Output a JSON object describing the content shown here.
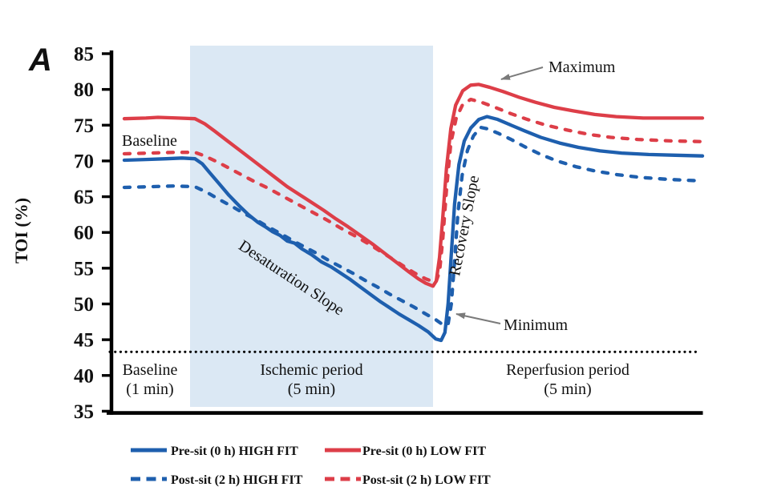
{
  "panel_label": "A",
  "y_axis": {
    "title": "TOI (%)",
    "ticks": [
      85,
      80,
      75,
      70,
      65,
      60,
      55,
      50,
      45,
      40,
      35
    ],
    "min": 35,
    "max": 85
  },
  "periods": [
    {
      "label": "Baseline",
      "duration": "(1 min)",
      "t_start": 0,
      "t_end": 1,
      "shaded": false
    },
    {
      "label": "Ischemic period",
      "duration": "(5 min)",
      "t_start": 1,
      "t_end": 6,
      "shaded": true
    },
    {
      "label": "Reperfusion period",
      "duration": "(5 min)",
      "t_start": 6,
      "t_end": 11,
      "shaded": false
    }
  ],
  "annotations": {
    "baseline": "Baseline",
    "maximum": "Maximum",
    "minimum": "Minimum",
    "desaturation_slope": "Desaturation Slope",
    "recovery_slope": "Recovery Slope"
  },
  "colors": {
    "high_fit": "#1e5fae",
    "low_fit": "#dd3e48",
    "band": "#dbe8f4",
    "annotation_gray": "#7a7a7a",
    "reference_line": "#000000"
  },
  "legend": {
    "rows": [
      [
        {
          "label": "Pre-sit (0 h) HIGH FIT",
          "color": "high_fit",
          "dash": false
        },
        {
          "label": "Pre-sit (0 h) LOW FIT",
          "color": "low_fit",
          "dash": false
        }
      ],
      [
        {
          "label": "Post-sit (2 h) HIGH FIT",
          "color": "high_fit",
          "dash": true
        },
        {
          "label": "Post-sit (2 h) LOW FIT",
          "color": "low_fit",
          "dash": true
        }
      ]
    ]
  },
  "chart_data": {
    "type": "line",
    "ylabel": "TOI (%)",
    "ylim": [
      35,
      85
    ],
    "x_unit": "min",
    "x_segments": [
      {
        "label": "Baseline",
        "start": 0,
        "end": 1
      },
      {
        "label": "Ischemic period",
        "start": 1,
        "end": 6
      },
      {
        "label": "Reperfusion period",
        "start": 6,
        "end": 11
      }
    ],
    "reference_line_y": 43.3,
    "series": [
      {
        "name": "Pre-sit (0 h) HIGH FIT",
        "color": "high_fit",
        "dash": false,
        "points": [
          [
            0.18,
            70.1
          ],
          [
            0.45,
            70.2
          ],
          [
            0.7,
            70.3
          ],
          [
            0.9,
            70.4
          ],
          [
            1.1,
            70.3
          ],
          [
            1.25,
            69.6
          ],
          [
            1.4,
            68.4
          ],
          [
            1.6,
            66.8
          ],
          [
            1.8,
            65.2
          ],
          [
            2.0,
            63.8
          ],
          [
            2.2,
            62.5
          ],
          [
            2.4,
            61.4
          ],
          [
            2.55,
            60.8
          ],
          [
            2.7,
            60.1
          ],
          [
            2.85,
            59.6
          ],
          [
            3.0,
            58.8
          ],
          [
            3.15,
            58.5
          ],
          [
            3.3,
            57.7
          ],
          [
            3.5,
            56.9
          ],
          [
            3.7,
            55.9
          ],
          [
            3.9,
            55.2
          ],
          [
            4.1,
            54.3
          ],
          [
            4.3,
            53.4
          ],
          [
            4.5,
            52.4
          ],
          [
            4.7,
            51.4
          ],
          [
            4.9,
            50.4
          ],
          [
            5.1,
            49.5
          ],
          [
            5.3,
            48.6
          ],
          [
            5.5,
            47.8
          ],
          [
            5.7,
            47.0
          ],
          [
            5.9,
            46.1
          ],
          [
            6.05,
            45.1
          ],
          [
            6.15,
            44.9
          ],
          [
            6.22,
            46.0
          ],
          [
            6.28,
            50.0
          ],
          [
            6.34,
            57.0
          ],
          [
            6.4,
            64.0
          ],
          [
            6.48,
            69.5
          ],
          [
            6.58,
            72.8
          ],
          [
            6.7,
            74.6
          ],
          [
            6.85,
            75.8
          ],
          [
            7.0,
            76.2
          ],
          [
            7.2,
            75.8
          ],
          [
            7.45,
            75.0
          ],
          [
            7.7,
            74.2
          ],
          [
            8.0,
            73.3
          ],
          [
            8.35,
            72.5
          ],
          [
            8.7,
            71.9
          ],
          [
            9.1,
            71.4
          ],
          [
            9.5,
            71.1
          ],
          [
            10.0,
            70.9
          ],
          [
            10.5,
            70.8
          ],
          [
            11,
            70.7
          ]
        ]
      },
      {
        "name": "Pre-sit (0 h) LOW FIT",
        "color": "low_fit",
        "dash": false,
        "points": [
          [
            0.18,
            75.9
          ],
          [
            0.45,
            76.0
          ],
          [
            0.6,
            76.1
          ],
          [
            0.85,
            76.0
          ],
          [
            1.1,
            75.9
          ],
          [
            1.3,
            75.2
          ],
          [
            1.5,
            74.2
          ],
          [
            1.75,
            72.9
          ],
          [
            2.0,
            71.6
          ],
          [
            2.25,
            70.3
          ],
          [
            2.5,
            69.0
          ],
          [
            2.75,
            67.7
          ],
          [
            3.0,
            66.4
          ],
          [
            3.25,
            65.3
          ],
          [
            3.5,
            64.2
          ],
          [
            3.75,
            63.1
          ],
          [
            4.0,
            61.9
          ],
          [
            4.25,
            60.8
          ],
          [
            4.5,
            59.6
          ],
          [
            4.75,
            58.4
          ],
          [
            5.0,
            57.1
          ],
          [
            5.25,
            55.8
          ],
          [
            5.5,
            54.5
          ],
          [
            5.7,
            53.5
          ],
          [
            5.85,
            52.9
          ],
          [
            6.0,
            52.5
          ],
          [
            6.06,
            53.2
          ],
          [
            6.12,
            56.5
          ],
          [
            6.18,
            62.0
          ],
          [
            6.25,
            69.0
          ],
          [
            6.33,
            74.5
          ],
          [
            6.42,
            77.8
          ],
          [
            6.55,
            79.8
          ],
          [
            6.7,
            80.6
          ],
          [
            6.85,
            80.7
          ],
          [
            7.05,
            80.3
          ],
          [
            7.3,
            79.7
          ],
          [
            7.6,
            78.9
          ],
          [
            7.9,
            78.2
          ],
          [
            8.25,
            77.5
          ],
          [
            8.6,
            77.0
          ],
          [
            9.0,
            76.5
          ],
          [
            9.4,
            76.2
          ],
          [
            9.9,
            76.0
          ],
          [
            10.5,
            76.0
          ],
          [
            11,
            76.0
          ]
        ]
      },
      {
        "name": "Post-sit (2 h) HIGH FIT",
        "color": "high_fit",
        "dash": true,
        "points": [
          [
            0.18,
            66.3
          ],
          [
            0.5,
            66.4
          ],
          [
            0.8,
            66.5
          ],
          [
            1.1,
            66.4
          ],
          [
            1.35,
            65.6
          ],
          [
            1.6,
            64.6
          ],
          [
            1.85,
            63.7
          ],
          [
            2.1,
            62.7
          ],
          [
            2.35,
            61.8
          ],
          [
            2.6,
            60.8
          ],
          [
            2.85,
            59.9
          ],
          [
            3.1,
            58.9
          ],
          [
            3.35,
            58.0
          ],
          [
            3.6,
            57.1
          ],
          [
            3.85,
            56.1
          ],
          [
            4.1,
            55.2
          ],
          [
            4.35,
            54.3
          ],
          [
            4.6,
            53.3
          ],
          [
            4.85,
            52.4
          ],
          [
            5.1,
            51.4
          ],
          [
            5.35,
            50.5
          ],
          [
            5.6,
            49.6
          ],
          [
            5.85,
            48.6
          ],
          [
            6.05,
            47.8
          ],
          [
            6.2,
            47.0
          ],
          [
            6.28,
            47.2
          ],
          [
            6.34,
            50.0
          ],
          [
            6.4,
            56.0
          ],
          [
            6.46,
            62.5
          ],
          [
            6.54,
            68.0
          ],
          [
            6.64,
            71.5
          ],
          [
            6.75,
            73.5
          ],
          [
            6.88,
            74.7
          ],
          [
            7.0,
            74.5
          ],
          [
            7.2,
            73.9
          ],
          [
            7.45,
            73.0
          ],
          [
            7.7,
            72.0
          ],
          [
            8.0,
            70.9
          ],
          [
            8.3,
            70.0
          ],
          [
            8.65,
            69.2
          ],
          [
            9.0,
            68.6
          ],
          [
            9.4,
            68.1
          ],
          [
            9.85,
            67.7
          ],
          [
            10.4,
            67.4
          ],
          [
            11,
            67.2
          ]
        ]
      },
      {
        "name": "Post-sit (2 h) LOW FIT",
        "color": "low_fit",
        "dash": true,
        "points": [
          [
            0.18,
            71.0
          ],
          [
            0.5,
            71.1
          ],
          [
            0.8,
            71.2
          ],
          [
            1.1,
            71.2
          ],
          [
            1.3,
            70.7
          ],
          [
            1.55,
            69.9
          ],
          [
            1.8,
            69.0
          ],
          [
            2.05,
            68.1
          ],
          [
            2.3,
            67.2
          ],
          [
            2.6,
            66.2
          ],
          [
            2.9,
            65.1
          ],
          [
            3.2,
            64.0
          ],
          [
            3.5,
            62.9
          ],
          [
            3.8,
            61.8
          ],
          [
            4.1,
            60.6
          ],
          [
            4.4,
            59.5
          ],
          [
            4.7,
            58.3
          ],
          [
            5.0,
            57.0
          ],
          [
            5.3,
            55.7
          ],
          [
            5.6,
            54.4
          ],
          [
            5.85,
            53.5
          ],
          [
            6.05,
            53.0
          ],
          [
            6.12,
            54.5
          ],
          [
            6.18,
            59.0
          ],
          [
            6.25,
            66.0
          ],
          [
            6.33,
            72.5
          ],
          [
            6.43,
            76.0
          ],
          [
            6.55,
            77.9
          ],
          [
            6.7,
            78.6
          ],
          [
            6.9,
            78.2
          ],
          [
            7.15,
            77.5
          ],
          [
            7.45,
            76.6
          ],
          [
            7.75,
            75.8
          ],
          [
            8.1,
            75.0
          ],
          [
            8.5,
            74.3
          ],
          [
            8.9,
            73.7
          ],
          [
            9.3,
            73.3
          ],
          [
            9.8,
            73.0
          ],
          [
            10.4,
            72.8
          ],
          [
            11,
            72.7
          ]
        ]
      }
    ]
  }
}
